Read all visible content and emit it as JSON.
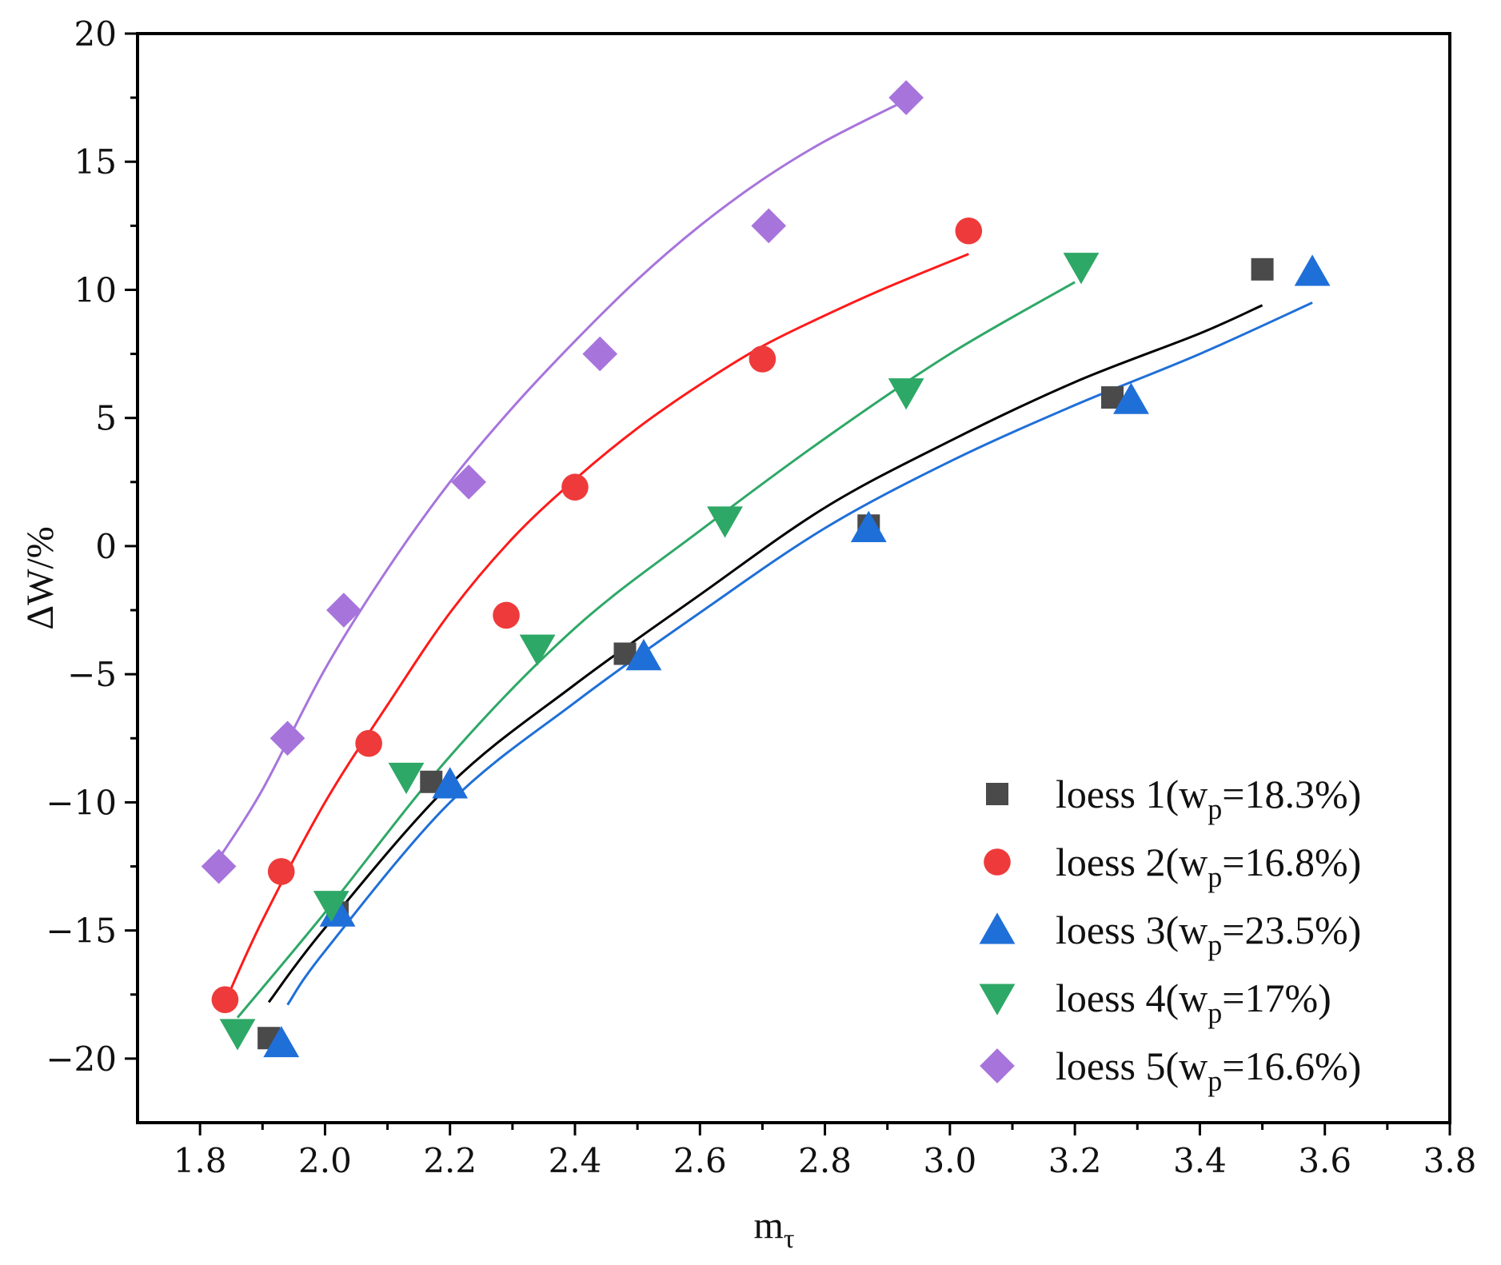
{
  "chart_data": {
    "type": "scatter",
    "title": "",
    "xlabel": "m",
    "xlabel_sub": "τ",
    "ylabel": "ΔW/%",
    "xlim": [
      1.7,
      3.8
    ],
    "ylim": [
      -22.5,
      20
    ],
    "xticks": [
      {
        "value": 1.8,
        "label": "1.8"
      },
      {
        "value": 2.0,
        "label": "2.0"
      },
      {
        "value": 2.2,
        "label": "2.2"
      },
      {
        "value": 2.4,
        "label": "2.4"
      },
      {
        "value": 2.6,
        "label": "2.6"
      },
      {
        "value": 2.8,
        "label": "2.8"
      },
      {
        "value": 3.0,
        "label": "3.0"
      },
      {
        "value": 3.2,
        "label": "3.2"
      },
      {
        "value": 3.4,
        "label": "3.4"
      },
      {
        "value": 3.6,
        "label": "3.6"
      },
      {
        "value": 3.8,
        "label": "3.8"
      }
    ],
    "yticks": [
      {
        "value": 20,
        "label": "20"
      },
      {
        "value": 15,
        "label": "15"
      },
      {
        "value": 10,
        "label": "10"
      },
      {
        "value": 5,
        "label": "5"
      },
      {
        "value": 0,
        "label": "0"
      },
      {
        "value": -5,
        "label": "−5"
      },
      {
        "value": -10,
        "label": "−10"
      },
      {
        "value": -15,
        "label": "−15"
      },
      {
        "value": -20,
        "label": "−20"
      }
    ],
    "legend_position": "bottom-right",
    "series": [
      {
        "name": "loess 1",
        "legend_prefix": "loess 1(w",
        "legend_sub": "p",
        "legend_suffix": "=18.3%)",
        "marker": "square",
        "color": "#4a4a4a",
        "line_color": "#000000",
        "x": [
          1.91,
          2.02,
          2.17,
          2.48,
          2.87,
          3.26,
          3.5
        ],
        "y": [
          -19.2,
          -14.3,
          -9.2,
          -4.2,
          0.8,
          5.8,
          10.8
        ],
        "fit": {
          "x": [
            1.91,
            2.0,
            2.2,
            2.4,
            2.6,
            2.8,
            3.0,
            3.2,
            3.4,
            3.5
          ],
          "y": [
            -17.8,
            -14.9,
            -9.3,
            -5.4,
            -1.9,
            1.5,
            4.1,
            6.4,
            8.3,
            9.4
          ]
        }
      },
      {
        "name": "loess 2",
        "legend_prefix": "loess 2(w",
        "legend_sub": "p",
        "legend_suffix": "=16.8%)",
        "marker": "circle",
        "color": "#ee3a3a",
        "line_color": "#ff1a1a",
        "x": [
          1.84,
          1.93,
          2.07,
          2.29,
          2.4,
          2.7,
          3.03
        ],
        "y": [
          -17.7,
          -12.7,
          -7.7,
          -2.7,
          2.3,
          7.3,
          12.3
        ],
        "fit": {
          "x": [
            1.84,
            1.9,
            2.0,
            2.1,
            2.2,
            2.3,
            2.4,
            2.5,
            2.6,
            2.7,
            2.8,
            2.9,
            3.03
          ],
          "y": [
            -17.8,
            -14.6,
            -10.0,
            -6.2,
            -2.6,
            0.3,
            2.6,
            4.6,
            6.3,
            7.8,
            9.0,
            10.1,
            11.4
          ]
        }
      },
      {
        "name": "loess 3",
        "legend_prefix": "loess 3(w",
        "legend_sub": "p",
        "legend_suffix": "=23.5%)",
        "marker": "triangle-up",
        "color": "#1f6fd8",
        "line_color": "#1f6fd8",
        "x": [
          1.93,
          2.02,
          2.2,
          2.51,
          2.87,
          3.29,
          3.58
        ],
        "y": [
          -19.4,
          -14.3,
          -9.3,
          -4.3,
          0.7,
          5.7,
          10.7
        ],
        "fit": {
          "x": [
            1.94,
            2.0,
            2.2,
            2.4,
            2.6,
            2.8,
            3.0,
            3.2,
            3.4,
            3.58
          ],
          "y": [
            -17.9,
            -15.8,
            -10.0,
            -6.1,
            -2.6,
            0.7,
            3.3,
            5.5,
            7.5,
            9.5
          ]
        }
      },
      {
        "name": "loess 4",
        "legend_prefix": "loess 4(w",
        "legend_sub": "p",
        "legend_suffix": "=17%)",
        "marker": "triangle-down",
        "color": "#2ea866",
        "line_color": "#2ea866",
        "x": [
          1.86,
          2.01,
          2.13,
          2.34,
          2.64,
          2.93,
          3.21
        ],
        "y": [
          -19.0,
          -14.0,
          -9.0,
          -4.0,
          1.0,
          6.0,
          10.9
        ],
        "fit": {
          "x": [
            1.86,
            2.0,
            2.2,
            2.4,
            2.6,
            2.8,
            3.0,
            3.2
          ],
          "y": [
            -18.4,
            -14.3,
            -8.2,
            -3.2,
            0.6,
            4.2,
            7.5,
            10.3
          ]
        }
      },
      {
        "name": "loess 5",
        "legend_prefix": "loess 5(w",
        "legend_sub": "p",
        "legend_suffix": "=16.6%)",
        "marker": "diamond",
        "color": "#a774dc",
        "line_color": "#a774dc",
        "x": [
          1.83,
          1.94,
          2.03,
          2.23,
          2.44,
          2.71,
          2.93
        ],
        "y": [
          -12.5,
          -7.5,
          -2.5,
          2.5,
          7.5,
          12.5,
          17.5
        ],
        "fit": {
          "x": [
            1.83,
            1.9,
            2.0,
            2.1,
            2.2,
            2.3,
            2.4,
            2.5,
            2.6,
            2.7,
            2.8,
            2.93
          ],
          "y": [
            -12.2,
            -9.5,
            -4.8,
            -0.9,
            2.5,
            5.4,
            8.0,
            10.4,
            12.5,
            14.3,
            15.8,
            17.4
          ]
        }
      }
    ]
  }
}
